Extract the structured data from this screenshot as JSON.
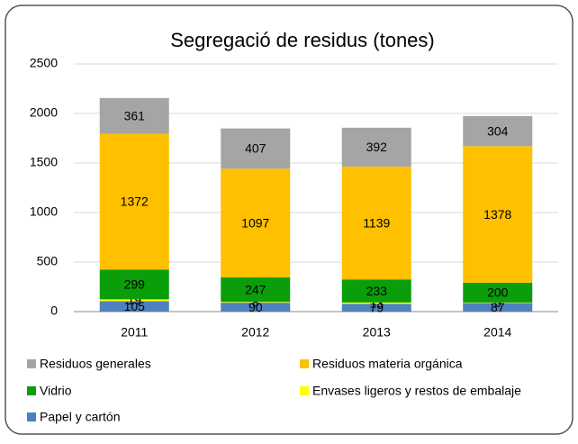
{
  "chart_data": {
    "type": "stacked_bar",
    "title": "Segregació de residus (tones)",
    "categories": [
      "2011",
      "2012",
      "2013",
      "2014"
    ],
    "series": [
      {
        "name": "Papel y cartón",
        "color": "#4f81bd",
        "values": [
          105,
          90,
          79,
          87
        ]
      },
      {
        "name": "Envases ligeros y restos de embalaje",
        "color": "#ffff00",
        "values": [
          19,
          8,
          13,
          5
        ]
      },
      {
        "name": "Vidrio",
        "color": "#0a9e0a",
        "values": [
          299,
          247,
          233,
          200
        ]
      },
      {
        "name": "Residuos materia orgánica",
        "color": "#ffc000",
        "values": [
          1372,
          1097,
          1139,
          1378
        ]
      },
      {
        "name": "Residuos generales",
        "color": "#a5a5a5",
        "values": [
          361,
          407,
          392,
          304
        ]
      }
    ],
    "ylim": [
      0,
      2500
    ],
    "yticks": [
      0,
      500,
      1000,
      1500,
      2000,
      2500
    ],
    "grid": true
  }
}
